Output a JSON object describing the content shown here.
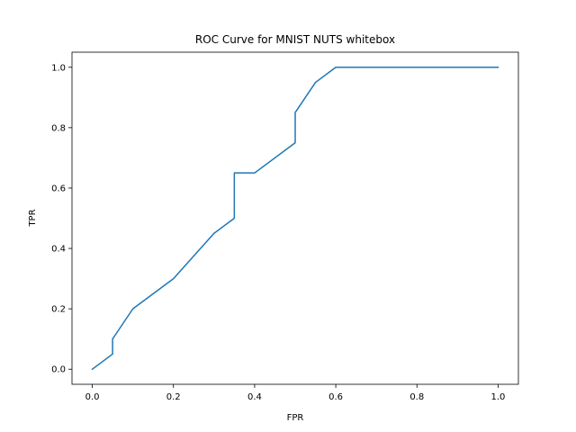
{
  "chart_data": {
    "type": "line",
    "title": "ROC Curve for MNIST NUTS whitebox",
    "xlabel": "FPR",
    "ylabel": "TPR",
    "xlim": [
      -0.05,
      1.05
    ],
    "ylim": [
      -0.05,
      1.05
    ],
    "xticks": [
      0.0,
      0.2,
      0.4,
      0.6,
      0.8,
      1.0
    ],
    "xtick_labels": [
      "0.0",
      "0.2",
      "0.4",
      "0.6",
      "0.8",
      "1.0"
    ],
    "yticks": [
      0.0,
      0.2,
      0.4,
      0.6,
      0.8,
      1.0
    ],
    "ytick_labels": [
      "0.0",
      "0.2",
      "0.4",
      "0.6",
      "0.8",
      "1.0"
    ],
    "grid": false,
    "series": [
      {
        "color": "#1f77b4",
        "x": [
          0.0,
          0.05,
          0.05,
          0.1,
          0.2,
          0.3,
          0.35,
          0.35,
          0.4,
          0.5,
          0.5,
          0.55,
          0.6,
          1.0
        ],
        "y": [
          0.0,
          0.05,
          0.1,
          0.2,
          0.3,
          0.45,
          0.5,
          0.65,
          0.65,
          0.75,
          0.85,
          0.95,
          1.0,
          1.0
        ]
      }
    ]
  }
}
